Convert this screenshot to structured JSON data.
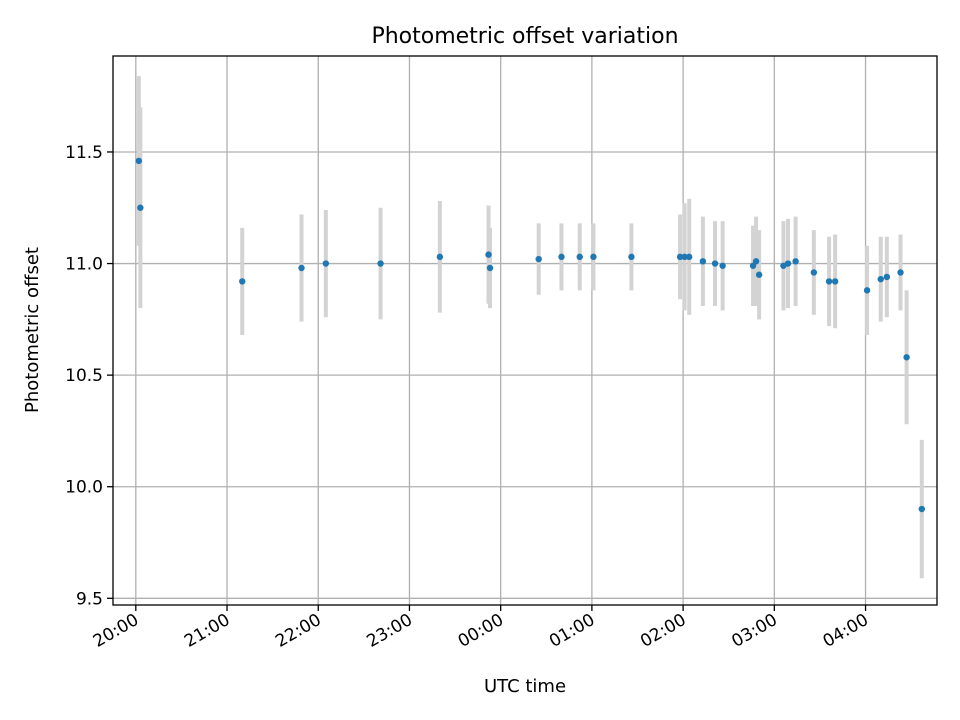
{
  "chart_data": {
    "type": "scatter",
    "title": "Photometric offset variation",
    "xlabel": "UTC time",
    "ylabel": "Photometric offset",
    "x_is_time": true,
    "x_unit": "hours UTC, continuing past midnight (24:00 = 00:00)",
    "xlim": [
      "19:45",
      "28:47"
    ],
    "ylim": [
      9.47,
      11.93
    ],
    "x_ticks": [
      {
        "value": "20:00",
        "label": "20:00"
      },
      {
        "value": "21:00",
        "label": "21:00"
      },
      {
        "value": "22:00",
        "label": "22:00"
      },
      {
        "value": "23:00",
        "label": "23:00"
      },
      {
        "value": "24:00",
        "label": "00:00"
      },
      {
        "value": "25:00",
        "label": "01:00"
      },
      {
        "value": "26:00",
        "label": "02:00"
      },
      {
        "value": "27:00",
        "label": "03:00"
      },
      {
        "value": "28:00",
        "label": "04:00"
      }
    ],
    "y_ticks": [
      9.5,
      10.0,
      10.5,
      11.0,
      11.5
    ],
    "y_tick_labels": [
      "9.5",
      "10.0",
      "10.5",
      "11.0",
      "11.5"
    ],
    "grid": true,
    "colors": {
      "points": "#1f77b4",
      "errorbars": "#d3d3d3",
      "grid": "#b0b0b0"
    },
    "points": [
      {
        "t": "20:02",
        "y": 11.46,
        "err": 0.38
      },
      {
        "t": "20:03",
        "y": 11.25,
        "err": 0.45
      },
      {
        "t": "21:10",
        "y": 10.92,
        "err": 0.24
      },
      {
        "t": "21:49",
        "y": 10.98,
        "err": 0.24
      },
      {
        "t": "22:05",
        "y": 11.0,
        "err": 0.24
      },
      {
        "t": "22:41",
        "y": 11.0,
        "err": 0.25
      },
      {
        "t": "23:20",
        "y": 11.03,
        "err": 0.25
      },
      {
        "t": "23:52",
        "y": 11.04,
        "err": 0.22
      },
      {
        "t": "23:53",
        "y": 10.98,
        "err": 0.18
      },
      {
        "t": "24:25",
        "y": 11.02,
        "err": 0.16
      },
      {
        "t": "24:40",
        "y": 11.03,
        "err": 0.15
      },
      {
        "t": "24:52",
        "y": 11.03,
        "err": 0.15
      },
      {
        "t": "25:01",
        "y": 11.03,
        "err": 0.15
      },
      {
        "t": "25:26",
        "y": 11.03,
        "err": 0.15
      },
      {
        "t": "25:58",
        "y": 11.03,
        "err": 0.19
      },
      {
        "t": "26:01",
        "y": 11.03,
        "err": 0.24
      },
      {
        "t": "26:04",
        "y": 11.03,
        "err": 0.26
      },
      {
        "t": "26:13",
        "y": 11.01,
        "err": 0.2
      },
      {
        "t": "26:21",
        "y": 11.0,
        "err": 0.19
      },
      {
        "t": "26:26",
        "y": 10.99,
        "err": 0.2
      },
      {
        "t": "26:46",
        "y": 10.99,
        "err": 0.18
      },
      {
        "t": "26:48",
        "y": 11.01,
        "err": 0.2
      },
      {
        "t": "26:50",
        "y": 10.95,
        "err": 0.2
      },
      {
        "t": "27:06",
        "y": 10.99,
        "err": 0.2
      },
      {
        "t": "27:09",
        "y": 11.0,
        "err": 0.2
      },
      {
        "t": "27:14",
        "y": 11.01,
        "err": 0.2
      },
      {
        "t": "27:26",
        "y": 10.96,
        "err": 0.19
      },
      {
        "t": "27:36",
        "y": 10.92,
        "err": 0.2
      },
      {
        "t": "27:40",
        "y": 10.92,
        "err": 0.21
      },
      {
        "t": "28:01",
        "y": 10.88,
        "err": 0.2
      },
      {
        "t": "28:10",
        "y": 10.93,
        "err": 0.19
      },
      {
        "t": "28:14",
        "y": 10.94,
        "err": 0.18
      },
      {
        "t": "28:23",
        "y": 10.96,
        "err": 0.17
      },
      {
        "t": "28:27",
        "y": 10.58,
        "err": 0.3
      },
      {
        "t": "28:37",
        "y": 9.9,
        "err": 0.31
      }
    ]
  }
}
